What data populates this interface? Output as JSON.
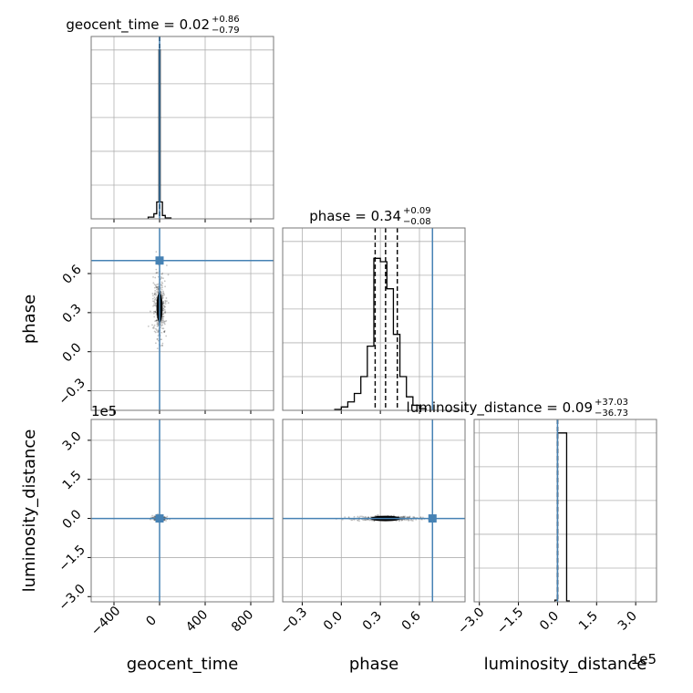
{
  "chart_data": {
    "type": "corner",
    "parameters": [
      "geocent_time",
      "phase",
      "luminosity_distance"
    ],
    "truths": {
      "geocent_time": 0,
      "phase": 0.7,
      "luminosity_distance": 0
    },
    "truth_color": "#4682b4",
    "grid": true,
    "panels": [
      {
        "id": "geocent_time_hist",
        "type": "histogram",
        "row": 0,
        "col": 0,
        "title": {
          "param": "geocent_time",
          "median": "0.02",
          "plus": "+0.86",
          "minus": "−0.79"
        },
        "xlim": [
          -600,
          1000
        ],
        "bins": [
          [
            -100,
            -50,
            0.01
          ],
          [
            -50,
            -25,
            0.03
          ],
          [
            -25,
            -5,
            0.1
          ],
          [
            -5,
            5,
            1.0
          ],
          [
            5,
            25,
            0.1
          ],
          [
            25,
            50,
            0.02
          ],
          [
            50,
            100,
            0.005
          ]
        ],
        "quantile_lines": [
          -0.8,
          0.02,
          0.9
        ]
      },
      {
        "id": "phase_geocent_time_scatter",
        "type": "scatter2d",
        "row": 1,
        "col": 0,
        "xlim": [
          -600,
          1000
        ],
        "ylim": [
          -0.45,
          0.95
        ],
        "center": {
          "x": 0,
          "y": 0.34
        },
        "spread": {
          "x": 20,
          "y": 0.09
        },
        "yticks": [
          -0.3,
          0.0,
          0.3,
          0.6
        ],
        "ytick_labels": [
          "−0.3",
          "0.0",
          "0.3",
          "0.6"
        ],
        "ylabel": "phase"
      },
      {
        "id": "phase_hist",
        "type": "histogram",
        "row": 1,
        "col": 1,
        "title": {
          "param": "phase",
          "median": "0.34",
          "plus": "+0.09",
          "minus": "−0.08"
        },
        "xlim": [
          -0.45,
          0.95
        ],
        "bins": [
          [
            -0.05,
            0.0,
            0.005
          ],
          [
            0.0,
            0.05,
            0.02
          ],
          [
            0.05,
            0.1,
            0.05
          ],
          [
            0.1,
            0.15,
            0.1
          ],
          [
            0.15,
            0.2,
            0.2
          ],
          [
            0.2,
            0.25,
            0.38
          ],
          [
            0.25,
            0.3,
            0.9
          ],
          [
            0.3,
            0.35,
            0.88
          ],
          [
            0.35,
            0.4,
            0.72
          ],
          [
            0.4,
            0.45,
            0.45
          ],
          [
            0.45,
            0.5,
            0.2
          ],
          [
            0.5,
            0.55,
            0.08
          ],
          [
            0.55,
            0.6,
            0.03
          ],
          [
            0.6,
            0.65,
            0.01
          ]
        ],
        "quantile_lines": [
          0.26,
          0.34,
          0.43
        ]
      },
      {
        "id": "luminosity_distance_geocent_time_scatter",
        "type": "scatter2d",
        "row": 2,
        "col": 0,
        "xlim": [
          -600,
          1000
        ],
        "ylim": [
          -320000,
          380000
        ],
        "center": {
          "x": 0,
          "y": 0
        },
        "spread": {
          "x": 20,
          "y": 3000
        },
        "yticks": [
          -300000,
          -150000,
          0,
          150000,
          300000
        ],
        "ytick_labels": [
          "−3.0",
          "−1.5",
          "0.0",
          "1.5",
          "3.0"
        ],
        "yoffset": "1e5",
        "ylabel": "luminosity_distance",
        "xticks": [
          -400,
          0,
          400,
          800
        ],
        "xtick_labels": [
          "−400",
          "0",
          "400",
          "800"
        ],
        "xlabel": "geocent_time"
      },
      {
        "id": "luminosity_distance_phase_scatter",
        "type": "scatter2d",
        "row": 2,
        "col": 1,
        "xlim": [
          -0.45,
          0.95
        ],
        "ylim": [
          -320000,
          380000
        ],
        "center": {
          "x": 0.34,
          "y": 0
        },
        "spread": {
          "x": 0.09,
          "y": 3000
        },
        "xticks": [
          -0.3,
          0.0,
          0.3,
          0.6
        ],
        "xtick_labels": [
          "−0.3",
          "0.0",
          "0.3",
          "0.6"
        ],
        "xlabel": "phase"
      },
      {
        "id": "luminosity_distance_hist",
        "type": "histogram",
        "row": 2,
        "col": 2,
        "title": {
          "param": "luminosity_distance",
          "median": "0.09",
          "plus": "+37.03",
          "minus": "−36.73"
        },
        "xlim": [
          -320000,
          380000
        ],
        "bins": [
          [
            -10000,
            0,
            0.01
          ],
          [
            0,
            35000,
            1.0
          ],
          [
            35000,
            45000,
            0.005
          ]
        ],
        "quantile_lines": [
          -36.73,
          0.09,
          37.03
        ],
        "xticks": [
          -300000,
          -150000,
          0,
          150000,
          300000
        ],
        "xtick_labels": [
          "−3.0",
          "−1.5",
          "0.0",
          "1.5",
          "3.0"
        ],
        "xoffset": "1e5",
        "xlabel": "luminosity_distance"
      }
    ]
  }
}
